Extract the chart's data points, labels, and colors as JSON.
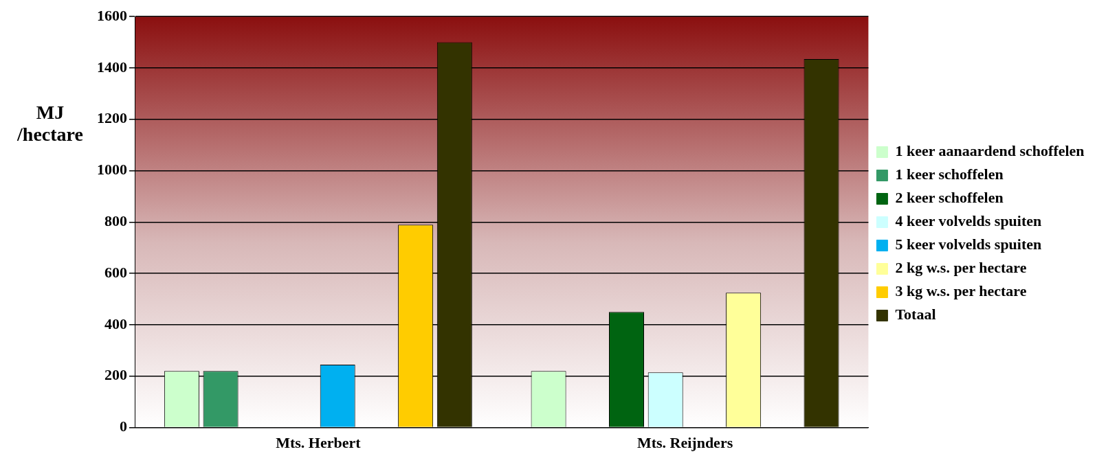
{
  "chart_data": {
    "type": "bar",
    "ylabel": "MJ /hectare",
    "categories": [
      "Mts. Herbert",
      "Mts. Reijnders"
    ],
    "series": [
      {
        "name": "1 keer aanaardend schoffelen",
        "color": "#ccffcc",
        "values": [
          220,
          220
        ]
      },
      {
        "name": "1 keer schoffelen",
        "color": "#339966",
        "values": [
          220,
          null
        ]
      },
      {
        "name": "2 keer schoffelen",
        "color": "#006411",
        "values": [
          null,
          450
        ]
      },
      {
        "name": "4 keer volvelds spuiten",
        "color": "#ccffff",
        "values": [
          null,
          215
        ]
      },
      {
        "name": "5 keer volvelds spuiten",
        "color": "#00b0f0",
        "values": [
          245,
          null
        ]
      },
      {
        "name": "2 kg w.s. per hectare",
        "color": "#ffff99",
        "values": [
          null,
          525
        ]
      },
      {
        "name": "3 kg w.s. per hectare",
        "color": "#ffcc00",
        "values": [
          790,
          null
        ]
      },
      {
        "name": "Totaal",
        "color": "#333300",
        "values": [
          1500,
          1435
        ]
      }
    ],
    "ylim": [
      0,
      1600
    ],
    "yticks": [
      0,
      200,
      400,
      600,
      800,
      1000,
      1200,
      1400,
      1600
    ],
    "grid": "y",
    "legend": "right"
  }
}
